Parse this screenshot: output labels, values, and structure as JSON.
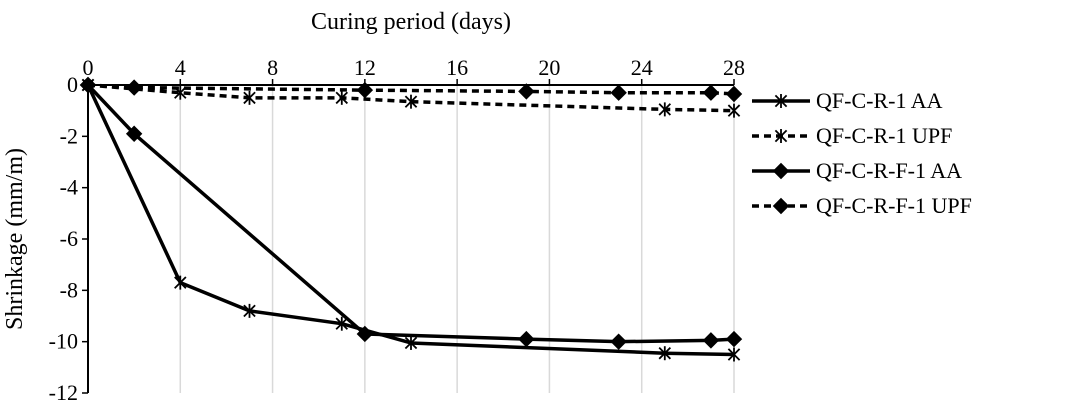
{
  "chart_data": {
    "type": "line",
    "xlabel": "Curing period (days)",
    "ylabel": "Shrinkage (mm/m)",
    "xlim": [
      0,
      28
    ],
    "ylim": [
      -12,
      0
    ],
    "x_ticks": [
      0,
      4,
      8,
      12,
      16,
      20,
      24,
      28
    ],
    "y_ticks": [
      0,
      -2,
      -4,
      -6,
      -8,
      -10,
      -12
    ],
    "x_axis_position": "top",
    "grid": "vertical",
    "legend_position": "right",
    "series": [
      {
        "name": "QF-C-R-1 AA",
        "line": "solid",
        "marker": "star",
        "x": [
          0,
          4,
          7,
          11,
          14,
          25,
          28
        ],
        "y": [
          0,
          -7.7,
          -8.8,
          -9.3,
          -10.05,
          -10.45,
          -10.5
        ]
      },
      {
        "name": "QF-C-R-1 UPF",
        "line": "dashed",
        "marker": "star",
        "x": [
          0,
          4,
          7,
          11,
          14,
          25,
          28
        ],
        "y": [
          0,
          -0.3,
          -0.5,
          -0.5,
          -0.65,
          -0.95,
          -1.0
        ]
      },
      {
        "name": "QF-C-R-F-1 AA",
        "line": "solid",
        "marker": "diamond",
        "x": [
          0,
          2,
          12,
          19,
          23,
          27,
          28
        ],
        "y": [
          0,
          -1.9,
          -9.7,
          -9.9,
          -10.0,
          -9.95,
          -9.9
        ]
      },
      {
        "name": "QF-C-R-F-1 UPF",
        "line": "dashed",
        "marker": "diamond",
        "x": [
          0,
          2,
          12,
          19,
          23,
          27,
          28
        ],
        "y": [
          0,
          -0.1,
          -0.2,
          -0.25,
          -0.3,
          -0.3,
          -0.35
        ]
      }
    ]
  },
  "colors": {
    "line": "#000000",
    "grid": "#d9d9d9",
    "axis": "#000000"
  }
}
